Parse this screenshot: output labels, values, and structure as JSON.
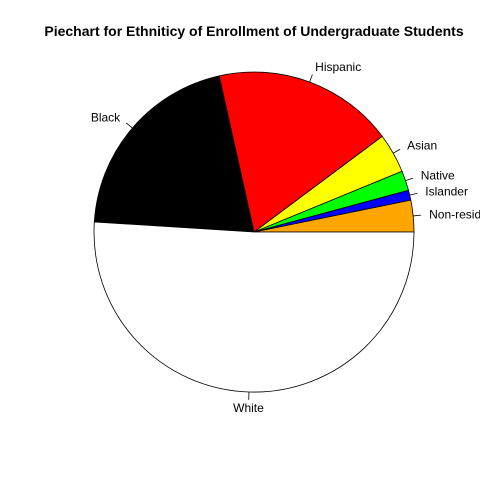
{
  "chart_data": {
    "type": "pie",
    "title": "Piechart for Ethniticy of Enrollment of Undergraduate Students",
    "slices": [
      {
        "label": "Non-resident",
        "value": 3.2,
        "color": "#FFA500"
      },
      {
        "label": "Islander",
        "value": 1.0,
        "color": "#0000FF"
      },
      {
        "label": "Native",
        "value": 2.0,
        "color": "#00FF00"
      },
      {
        "label": "Asian",
        "value": 4.0,
        "color": "#FFFF00"
      },
      {
        "label": "Hispanic",
        "value": 18.3,
        "color": "#FF0000"
      },
      {
        "label": "Black",
        "value": 20.5,
        "color": "#000000"
      },
      {
        "label": "White",
        "value": 51.0,
        "color": "#FFFFFF"
      }
    ],
    "start_angle": "3 o'clock, counter-clockwise"
  }
}
